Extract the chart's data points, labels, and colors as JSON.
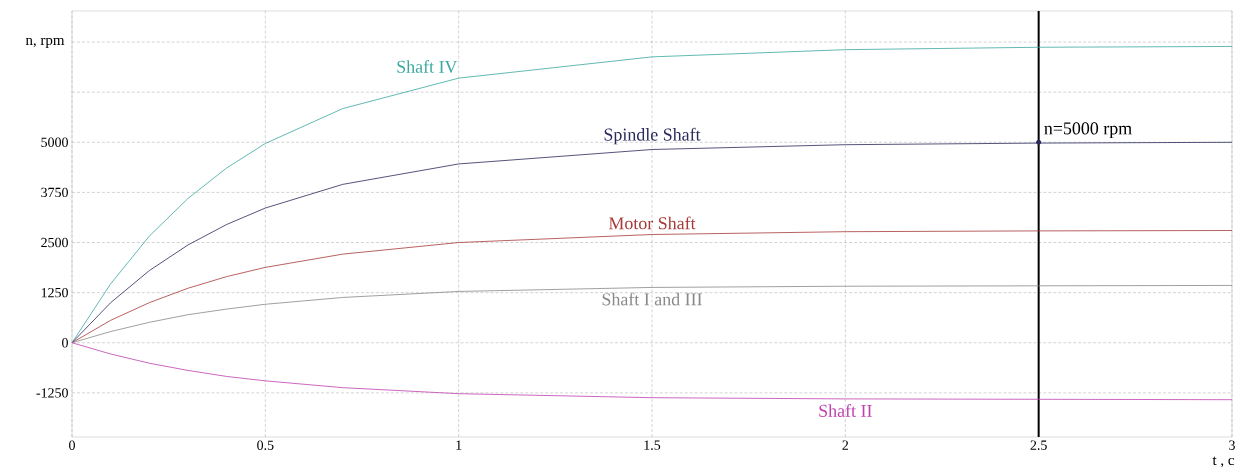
{
  "chart_data": {
    "type": "line",
    "xlabel": "t , c",
    "ylabel": "n, rpm",
    "x": [
      0,
      0.1,
      0.2,
      0.3,
      0.4,
      0.5,
      0.7,
      1,
      1.5,
      2,
      2.5,
      3
    ],
    "series": [
      {
        "name": "Shaft IV",
        "color": "#3aa8a0",
        "values": [
          0,
          1470,
          2660,
          3600,
          4360,
          4970,
          5840,
          6600,
          7130,
          7310,
          7370,
          7390
        ]
      },
      {
        "name": "Spindle Shaft",
        "color": "#2a2a5a",
        "values": [
          0,
          1000,
          1800,
          2440,
          2950,
          3360,
          3950,
          4460,
          4820,
          4940,
          4980,
          5000
        ]
      },
      {
        "name": "Motor Shaft",
        "color": "#a83a3a",
        "values": [
          0,
          560,
          1000,
          1360,
          1650,
          1880,
          2210,
          2500,
          2700,
          2770,
          2790,
          2800
        ]
      },
      {
        "name": "Shaft I and III",
        "color": "#888888",
        "values": [
          0,
          280,
          510,
          700,
          840,
          960,
          1130,
          1280,
          1380,
          1410,
          1420,
          1430
        ]
      },
      {
        "name": "Shaft II",
        "color": "#c040b0",
        "values": [
          0,
          -280,
          -510,
          -690,
          -840,
          -950,
          -1120,
          -1270,
          -1370,
          -1400,
          -1410,
          -1420
        ]
      }
    ],
    "xlim": [
      0,
      3
    ],
    "ylim": [
      -2350,
      8275
    ],
    "xticks": [
      0,
      0.5,
      1,
      1.5,
      2,
      2.5,
      3
    ],
    "yticks": [
      -1250,
      0,
      1250,
      2500,
      3750,
      5000,
      {
        "value": 6250,
        "label": null
      },
      {
        "value": 7500,
        "label": null
      }
    ],
    "grid": true,
    "marker": "none",
    "line_style": "solid",
    "ref_lines": [
      {
        "axis": "x",
        "value": 2.5,
        "color": "#000000"
      }
    ],
    "annotations": [
      {
        "text": "n=5000 rpm",
        "x": 2.5,
        "y": 5000
      }
    ]
  }
}
